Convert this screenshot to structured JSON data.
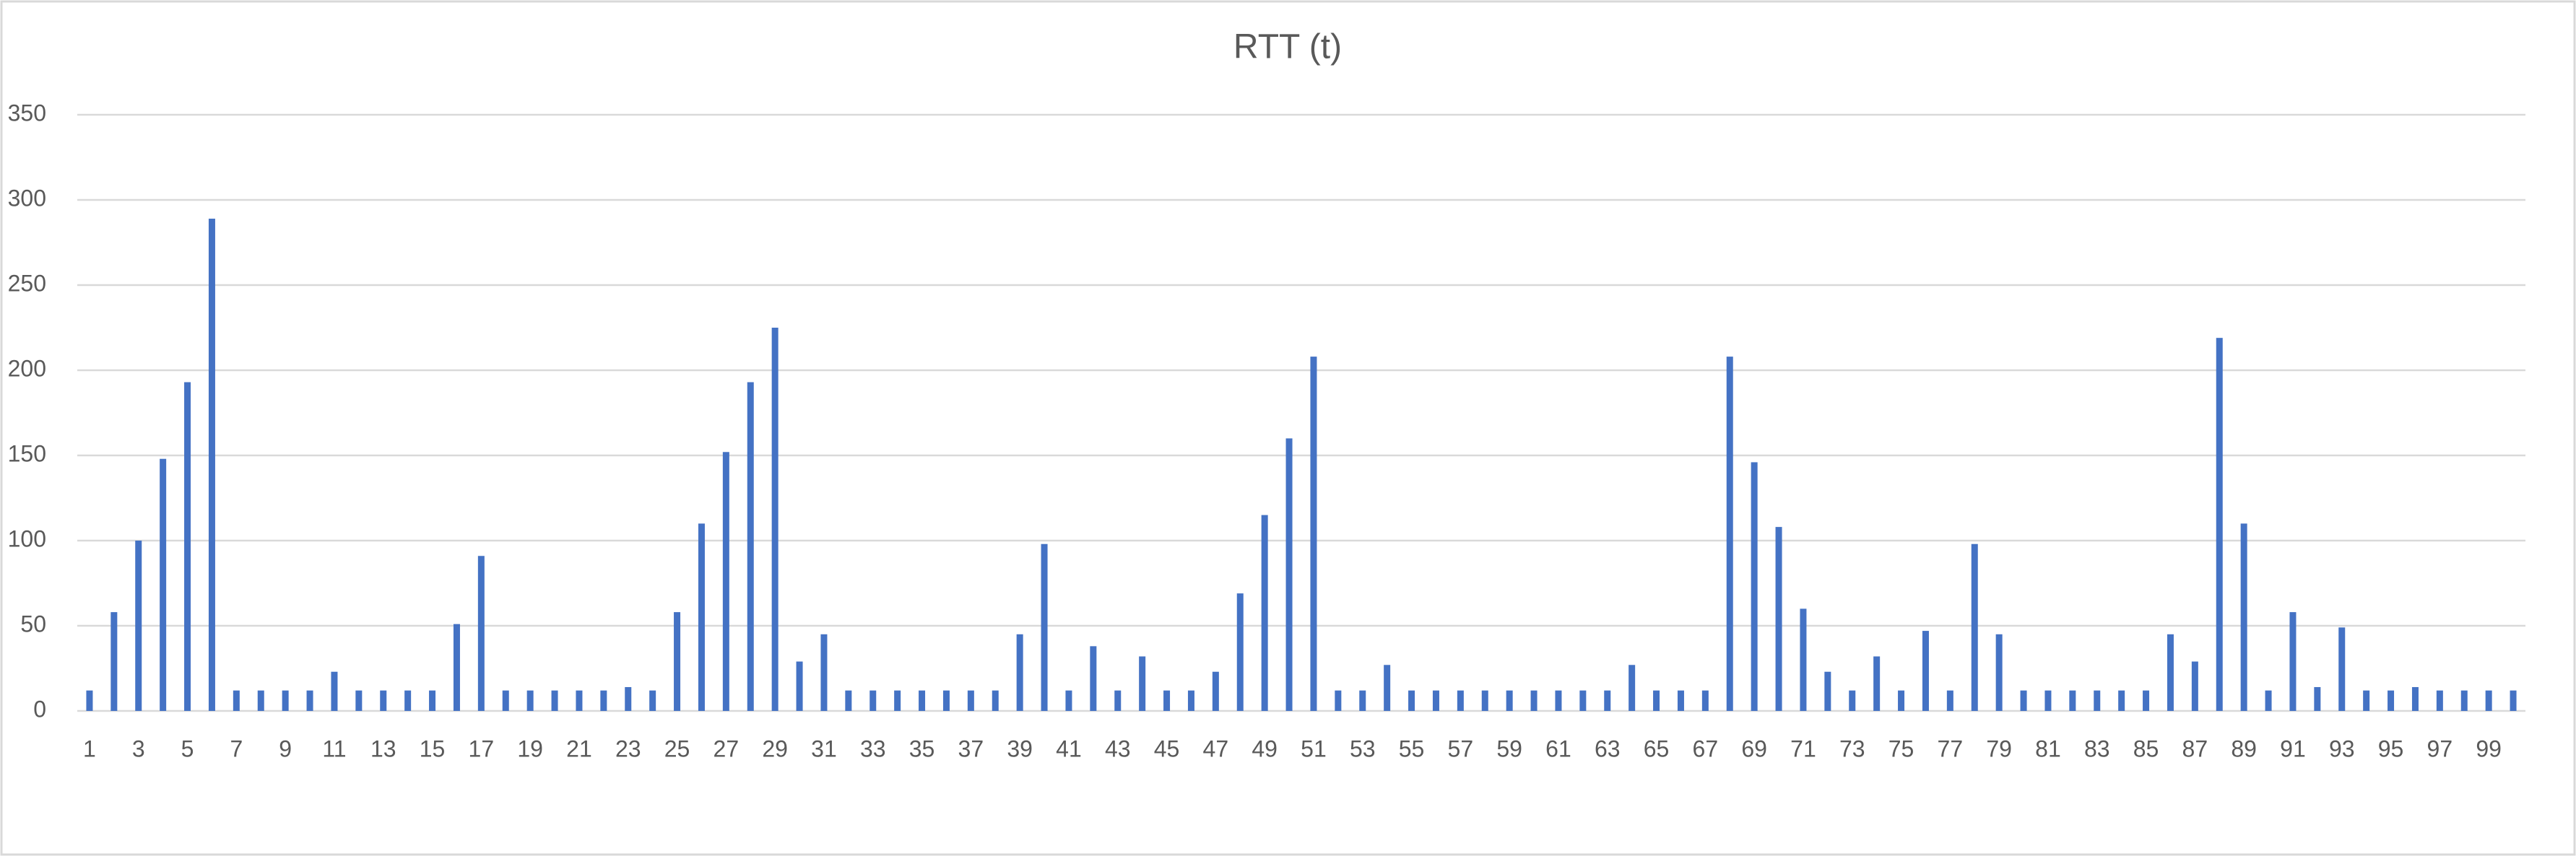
{
  "chart_data": {
    "type": "bar",
    "title": "RTT (t)",
    "categories": [
      "1",
      null,
      "3",
      null,
      "5",
      null,
      "7",
      null,
      "9",
      null,
      "11",
      null,
      "13",
      null,
      "15",
      null,
      "17",
      null,
      "19",
      null,
      "21",
      null,
      "23",
      null,
      "25",
      null,
      "27",
      null,
      "29",
      null,
      "31",
      null,
      "33",
      null,
      "35",
      null,
      "37",
      null,
      "39",
      null,
      "41",
      null,
      "43",
      null,
      "45",
      null,
      "47",
      null,
      "49",
      null,
      "51",
      null,
      "53",
      null,
      "55",
      null,
      "57",
      null,
      "59",
      null,
      "61",
      null,
      "63",
      null,
      "65",
      null,
      "67",
      null,
      "69",
      null,
      "71",
      null,
      "73",
      null,
      "75",
      null,
      "77",
      null,
      "79",
      null,
      "81",
      null,
      "83",
      null,
      "85",
      null,
      "87",
      null,
      "89",
      null,
      "91",
      null,
      "93",
      null,
      "95",
      null,
      "97",
      null,
      "99",
      null
    ],
    "values": [
      12,
      58,
      100,
      148,
      193,
      289,
      12,
      12,
      12,
      12,
      23,
      12,
      12,
      12,
      12,
      51,
      91,
      12,
      12,
      12,
      12,
      12,
      14,
      12,
      58,
      110,
      152,
      193,
      225,
      29,
      45,
      12,
      12,
      12,
      12,
      12,
      12,
      12,
      45,
      98,
      12,
      38,
      12,
      32,
      12,
      12,
      23,
      69,
      115,
      160,
      208,
      12,
      12,
      27,
      12,
      12,
      12,
      12,
      12,
      12,
      12,
      12,
      12,
      27,
      12,
      12,
      12,
      208,
      146,
      108,
      60,
      23,
      12,
      32,
      12,
      47,
      12,
      98,
      45,
      12,
      12,
      12,
      12,
      12,
      12,
      45,
      29,
      219,
      110,
      12,
      58,
      14,
      49,
      12,
      12,
      14,
      12,
      12,
      12,
      12
    ],
    "color": "#4472c4",
    "ylim": [
      0,
      350
    ],
    "yticks": [
      0,
      50,
      100,
      150,
      200,
      250,
      300,
      350
    ],
    "grid": true
  }
}
